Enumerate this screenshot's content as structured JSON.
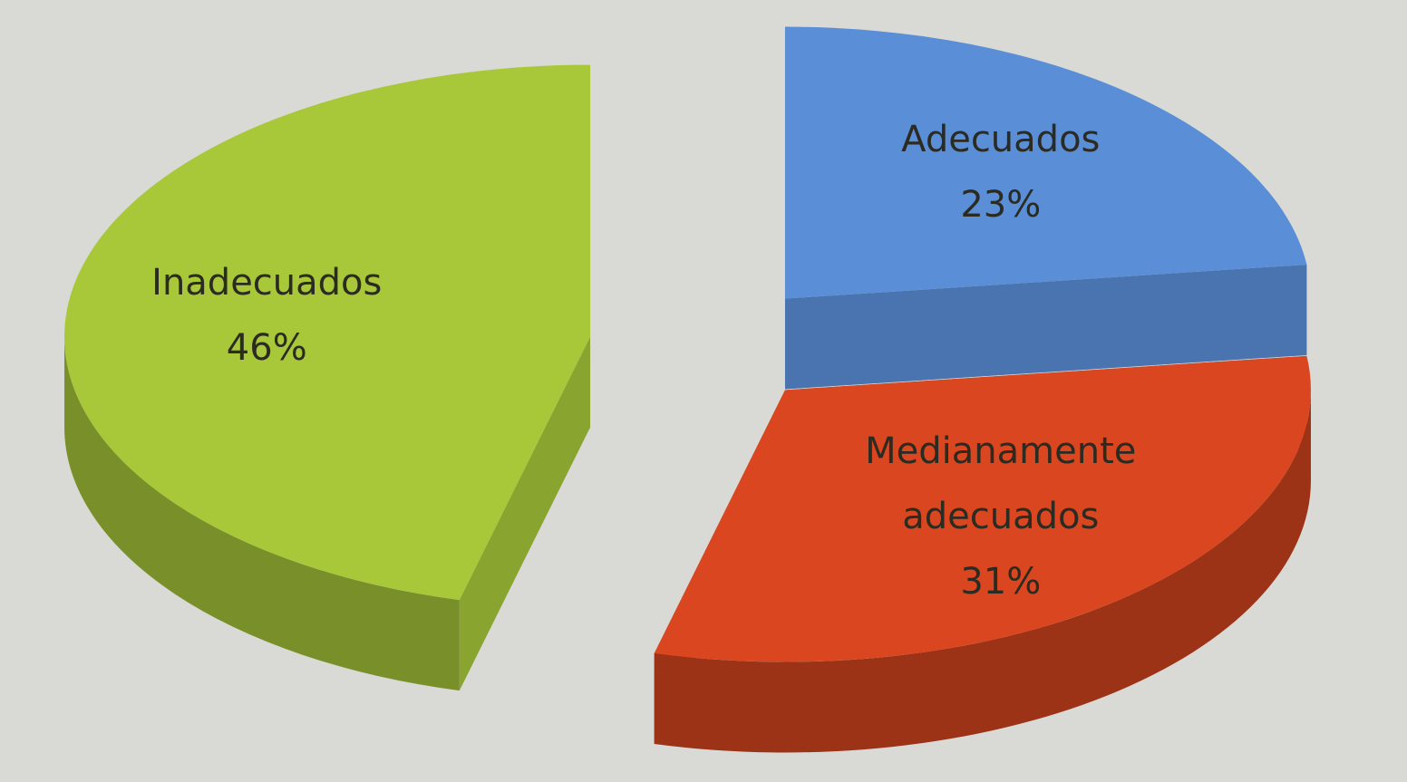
{
  "chart_data": {
    "type": "pie",
    "categories": [
      "Adecuados",
      "Medianamente adecuados",
      "Inadecuados"
    ],
    "values": [
      23,
      31,
      46
    ],
    "value_labels": [
      "23%",
      "31%",
      "46%"
    ],
    "colors": [
      "#5a8ed6",
      "#d9461f",
      "#a8c83a"
    ]
  }
}
